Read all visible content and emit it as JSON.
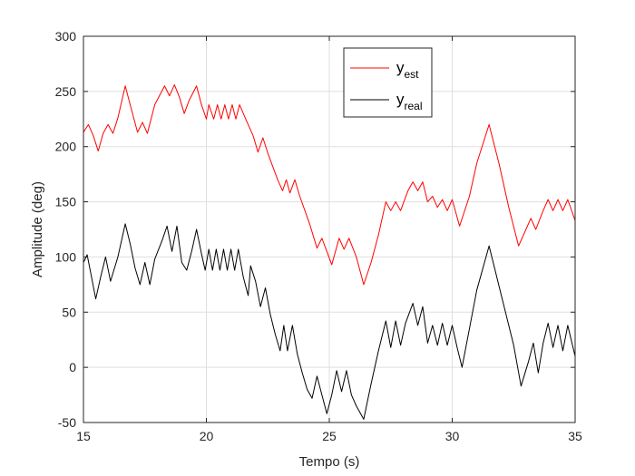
{
  "chart_data": {
    "type": "line",
    "xlabel": "Tempo (s)",
    "ylabel": "Amplitude (deg)",
    "xlim": [
      15,
      35
    ],
    "ylim": [
      -50,
      300
    ],
    "xticks": [
      "15",
      "20",
      "25",
      "30",
      "35"
    ],
    "yticks": [
      "-50",
      "0",
      "50",
      "100",
      "150",
      "200",
      "250",
      "300"
    ],
    "grid": true,
    "legend_position": "top-right",
    "series": [
      {
        "name": "y_est",
        "legend_main": "y",
        "legend_sub": "est",
        "color": "#ff0000",
        "points": [
          [
            15,
            213
          ],
          [
            15.2,
            220
          ],
          [
            15.4,
            210
          ],
          [
            15.6,
            196
          ],
          [
            15.8,
            212
          ],
          [
            16.0,
            220
          ],
          [
            16.2,
            212
          ],
          [
            16.4,
            226
          ],
          [
            16.7,
            255
          ],
          [
            16.9,
            238
          ],
          [
            17.2,
            213
          ],
          [
            17.4,
            222
          ],
          [
            17.6,
            212
          ],
          [
            17.9,
            238
          ],
          [
            18.3,
            255
          ],
          [
            18.5,
            246
          ],
          [
            18.7,
            256
          ],
          [
            18.9,
            245
          ],
          [
            19.1,
            230
          ],
          [
            19.3,
            242
          ],
          [
            19.6,
            255
          ],
          [
            19.8,
            238
          ],
          [
            20.0,
            225
          ],
          [
            20.1,
            238
          ],
          [
            20.3,
            225
          ],
          [
            20.45,
            238
          ],
          [
            20.6,
            225
          ],
          [
            20.75,
            238
          ],
          [
            20.9,
            225
          ],
          [
            21.05,
            238
          ],
          [
            21.2,
            225
          ],
          [
            21.35,
            238
          ],
          [
            21.6,
            225
          ],
          [
            21.9,
            210
          ],
          [
            22.1,
            195
          ],
          [
            22.3,
            208
          ],
          [
            22.5,
            194
          ],
          [
            22.9,
            170
          ],
          [
            23.1,
            160
          ],
          [
            23.25,
            170
          ],
          [
            23.4,
            158
          ],
          [
            23.6,
            170
          ],
          [
            23.8,
            155
          ],
          [
            24.2,
            130
          ],
          [
            24.5,
            108
          ],
          [
            24.7,
            117
          ],
          [
            24.9,
            105
          ],
          [
            25.1,
            93
          ],
          [
            25.4,
            117
          ],
          [
            25.6,
            107
          ],
          [
            25.8,
            117
          ],
          [
            26.1,
            100
          ],
          [
            26.4,
            75
          ],
          [
            26.7,
            95
          ],
          [
            27.0,
            120
          ],
          [
            27.3,
            150
          ],
          [
            27.5,
            142
          ],
          [
            27.7,
            150
          ],
          [
            27.9,
            142
          ],
          [
            28.2,
            160
          ],
          [
            28.4,
            168
          ],
          [
            28.6,
            160
          ],
          [
            28.8,
            168
          ],
          [
            29.0,
            150
          ],
          [
            29.2,
            155
          ],
          [
            29.4,
            145
          ],
          [
            29.6,
            152
          ],
          [
            29.8,
            142
          ],
          [
            30.0,
            152
          ],
          [
            30.3,
            128
          ],
          [
            30.7,
            155
          ],
          [
            31.0,
            185
          ],
          [
            31.5,
            220
          ],
          [
            31.9,
            185
          ],
          [
            32.3,
            145
          ],
          [
            32.7,
            110
          ],
          [
            33.0,
            125
          ],
          [
            33.2,
            135
          ],
          [
            33.4,
            125
          ],
          [
            33.7,
            142
          ],
          [
            33.9,
            152
          ],
          [
            34.1,
            142
          ],
          [
            34.3,
            152
          ],
          [
            34.5,
            142
          ],
          [
            34.7,
            152
          ],
          [
            35.0,
            133
          ]
        ]
      },
      {
        "name": "y_real",
        "legend_main": "y",
        "legend_sub": "real",
        "color": "#000000",
        "points": [
          [
            15,
            95
          ],
          [
            15.15,
            102
          ],
          [
            15.3,
            85
          ],
          [
            15.5,
            62
          ],
          [
            15.7,
            82
          ],
          [
            15.9,
            100
          ],
          [
            16.1,
            78
          ],
          [
            16.4,
            100
          ],
          [
            16.7,
            130
          ],
          [
            16.9,
            112
          ],
          [
            17.1,
            90
          ],
          [
            17.3,
            75
          ],
          [
            17.5,
            95
          ],
          [
            17.7,
            75
          ],
          [
            17.9,
            98
          ],
          [
            18.2,
            115
          ],
          [
            18.4,
            128
          ],
          [
            18.6,
            105
          ],
          [
            18.8,
            128
          ],
          [
            19.0,
            95
          ],
          [
            19.2,
            88
          ],
          [
            19.4,
            105
          ],
          [
            19.6,
            125
          ],
          [
            19.8,
            103
          ],
          [
            19.95,
            88
          ],
          [
            20.1,
            107
          ],
          [
            20.25,
            88
          ],
          [
            20.4,
            107
          ],
          [
            20.55,
            88
          ],
          [
            20.7,
            107
          ],
          [
            20.85,
            88
          ],
          [
            21.0,
            107
          ],
          [
            21.15,
            88
          ],
          [
            21.3,
            107
          ],
          [
            21.5,
            82
          ],
          [
            21.7,
            65
          ],
          [
            21.8,
            92
          ],
          [
            22.0,
            78
          ],
          [
            22.2,
            55
          ],
          [
            22.4,
            72
          ],
          [
            22.6,
            48
          ],
          [
            22.8,
            30
          ],
          [
            23.0,
            15
          ],
          [
            23.15,
            38
          ],
          [
            23.3,
            15
          ],
          [
            23.5,
            38
          ],
          [
            23.7,
            12
          ],
          [
            23.9,
            -5
          ],
          [
            24.1,
            -20
          ],
          [
            24.3,
            -28
          ],
          [
            24.5,
            -8
          ],
          [
            24.7,
            -25
          ],
          [
            24.9,
            -42
          ],
          [
            25.1,
            -25
          ],
          [
            25.3,
            -3
          ],
          [
            25.5,
            -22
          ],
          [
            25.7,
            -3
          ],
          [
            25.9,
            -25
          ],
          [
            26.1,
            -35
          ],
          [
            26.4,
            -47
          ],
          [
            26.7,
            -15
          ],
          [
            27.0,
            15
          ],
          [
            27.3,
            42
          ],
          [
            27.5,
            18
          ],
          [
            27.7,
            42
          ],
          [
            27.9,
            20
          ],
          [
            28.1,
            40
          ],
          [
            28.4,
            58
          ],
          [
            28.6,
            38
          ],
          [
            28.8,
            55
          ],
          [
            29.0,
            22
          ],
          [
            29.2,
            38
          ],
          [
            29.4,
            20
          ],
          [
            29.6,
            40
          ],
          [
            29.8,
            20
          ],
          [
            30.0,
            38
          ],
          [
            30.2,
            18
          ],
          [
            30.4,
            0
          ],
          [
            30.7,
            35
          ],
          [
            31.0,
            70
          ],
          [
            31.5,
            110
          ],
          [
            32.0,
            65
          ],
          [
            32.5,
            20
          ],
          [
            32.8,
            -17
          ],
          [
            33.1,
            5
          ],
          [
            33.3,
            22
          ],
          [
            33.5,
            -5
          ],
          [
            33.7,
            22
          ],
          [
            33.9,
            40
          ],
          [
            34.1,
            18
          ],
          [
            34.3,
            38
          ],
          [
            34.5,
            15
          ],
          [
            34.7,
            38
          ],
          [
            35.0,
            10
          ]
        ]
      }
    ]
  }
}
